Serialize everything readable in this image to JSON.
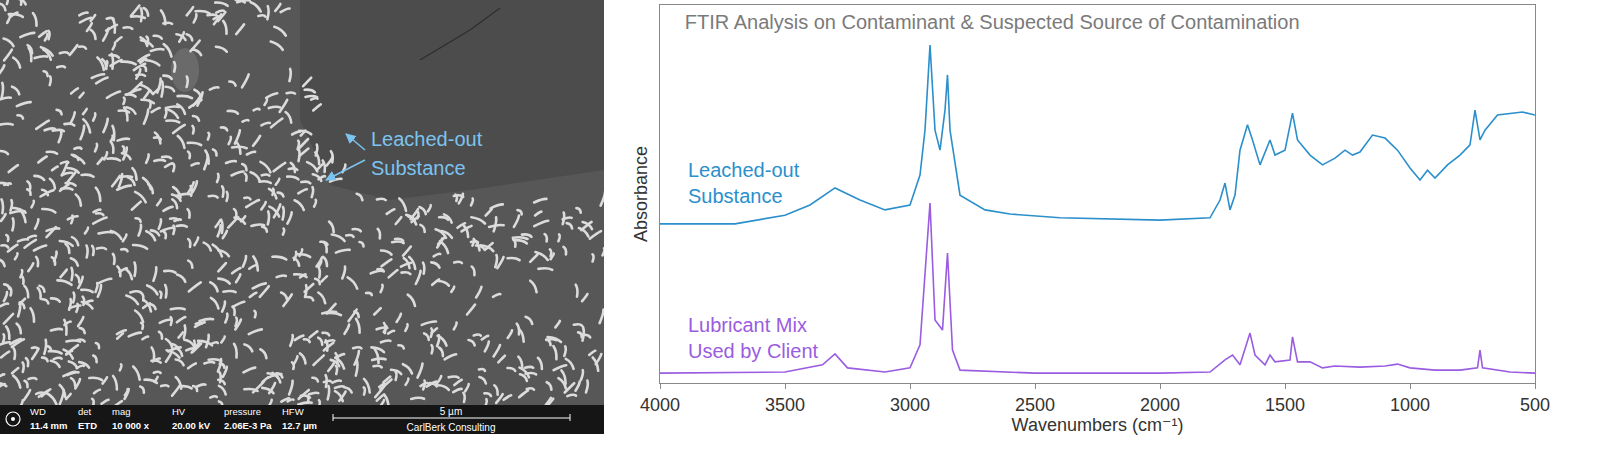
{
  "chart_data": {
    "type": "line",
    "title": "FTIR Analysis on Contaminant & Suspected Source of Contamination",
    "x_label": "Wavenumbers (cm⁻¹)",
    "y_label": "Absorbance",
    "xlim": [
      4000,
      500
    ],
    "xticks": [
      4000,
      3500,
      3000,
      2500,
      2000,
      1500,
      1000,
      500
    ],
    "ylim": [
      0,
      100
    ],
    "tick_labels": "x",
    "grid": false,
    "series": [
      {
        "name": "Leached-out\nSubstance",
        "color": "#2b8fcc",
        "type": "line",
        "x": [
          4000,
          3700,
          3500,
          3400,
          3300,
          3200,
          3100,
          3000,
          2960,
          2940,
          2920,
          2900,
          2880,
          2860,
          2850,
          2840,
          2800,
          2700,
          2600,
          2400,
          2000,
          1800,
          1760,
          1740,
          1720,
          1700,
          1680,
          1650,
          1630,
          1600,
          1560,
          1540,
          1500,
          1470,
          1450,
          1400,
          1350,
          1300,
          1260,
          1230,
          1200,
          1150,
          1100,
          1050,
          1000,
          960,
          930,
          900,
          850,
          800,
          760,
          740,
          720,
          700,
          650,
          600,
          550,
          500
        ],
        "values": [
          42.1,
          42.1,
          44.4,
          47.1,
          51.6,
          48.4,
          45.8,
          47.1,
          55.0,
          66.9,
          89.4,
          66.9,
          61.6,
          72.2,
          81.5,
          66.9,
          49.7,
          45.8,
          44.7,
          43.7,
          43.1,
          43.7,
          48.4,
          52.9,
          45.8,
          49.7,
          61.6,
          68.3,
          64.3,
          57.7,
          64.3,
          60.3,
          61.6,
          71.4,
          64.3,
          60.3,
          57.7,
          59.5,
          61.6,
          60.3,
          61.1,
          65.6,
          64.8,
          61.6,
          56.9,
          53.7,
          56.3,
          54.2,
          57.7,
          60.3,
          63.0,
          72.2,
          64.3,
          66.9,
          70.9,
          71.4,
          71.7,
          70.9
        ]
      },
      {
        "name": "Lubricant Mix\nUsed by Client",
        "color": "#9a5ce0",
        "type": "line",
        "x": [
          4000,
          3500,
          3350,
          3300,
          3250,
          3100,
          3000,
          2960,
          2920,
          2900,
          2870,
          2850,
          2830,
          2800,
          2500,
          2000,
          1800,
          1740,
          1710,
          1680,
          1640,
          1620,
          1580,
          1560,
          1540,
          1480,
          1470,
          1450,
          1400,
          1350,
          1300,
          1200,
          1100,
          1050,
          1000,
          900,
          800,
          730,
          720,
          710,
          600,
          500
        ],
        "values": [
          2.6,
          2.9,
          4.8,
          7.7,
          4.0,
          2.9,
          4.0,
          10.1,
          47.6,
          16.7,
          14.0,
          34.4,
          8.7,
          3.4,
          2.6,
          2.6,
          2.9,
          6.1,
          7.4,
          4.8,
          13.2,
          7.4,
          4.8,
          7.4,
          5.6,
          6.1,
          12.2,
          5.6,
          5.6,
          4.0,
          4.5,
          4.2,
          4.5,
          5.0,
          4.0,
          3.4,
          3.4,
          4.0,
          8.7,
          4.0,
          2.9,
          2.6
        ]
      }
    ]
  },
  "sem_image": {
    "annotation": "Leached-out\nSubstance",
    "info_bar": [
      {
        "label": "WD",
        "value": "11.4 mm"
      },
      {
        "label": "det",
        "value": "ETD"
      },
      {
        "label": "mag",
        "value": "10 000 x"
      },
      {
        "label": "HV",
        "value": "20.00 kV"
      },
      {
        "label": "pressure",
        "value": "2.06E-3 Pa"
      },
      {
        "label": "HFW",
        "value": "12.7 µm"
      }
    ],
    "scale_bar": "5 µm",
    "credit": "CarlBerk Consulting"
  }
}
